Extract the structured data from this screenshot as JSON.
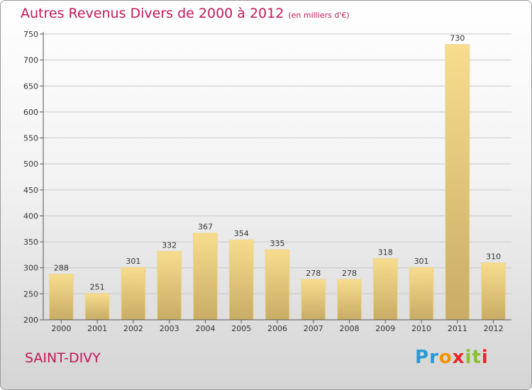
{
  "title": "Autres Revenus Divers de 2000 à 2012",
  "unit": "(en milliers d'€)",
  "place": "SAINT-DIVY",
  "logo": {
    "letters": [
      "P",
      "r",
      "o",
      "x",
      "i",
      "t",
      "i"
    ],
    "colors": [
      "#2a9ad6",
      "#2a9ad6",
      "#f39200",
      "#e8262b",
      "#8bbf2c",
      "#8bbf2c",
      "#e8262b"
    ]
  },
  "colors": {
    "title": "#c2185b",
    "bar_light": "#f8dc8e",
    "bar_dark": "#c9ac65"
  },
  "chart_data": {
    "type": "bar",
    "categories": [
      "2000",
      "2001",
      "2002",
      "2003",
      "2004",
      "2005",
      "2006",
      "2007",
      "2008",
      "2009",
      "2010",
      "2011",
      "2012"
    ],
    "values": [
      288,
      251,
      301,
      332,
      367,
      354,
      335,
      278,
      278,
      318,
      301,
      730,
      310
    ],
    "ylim": [
      200,
      750
    ],
    "yticks": [
      200,
      250,
      300,
      350,
      400,
      450,
      500,
      550,
      600,
      650,
      700,
      750
    ],
    "grid": true
  }
}
